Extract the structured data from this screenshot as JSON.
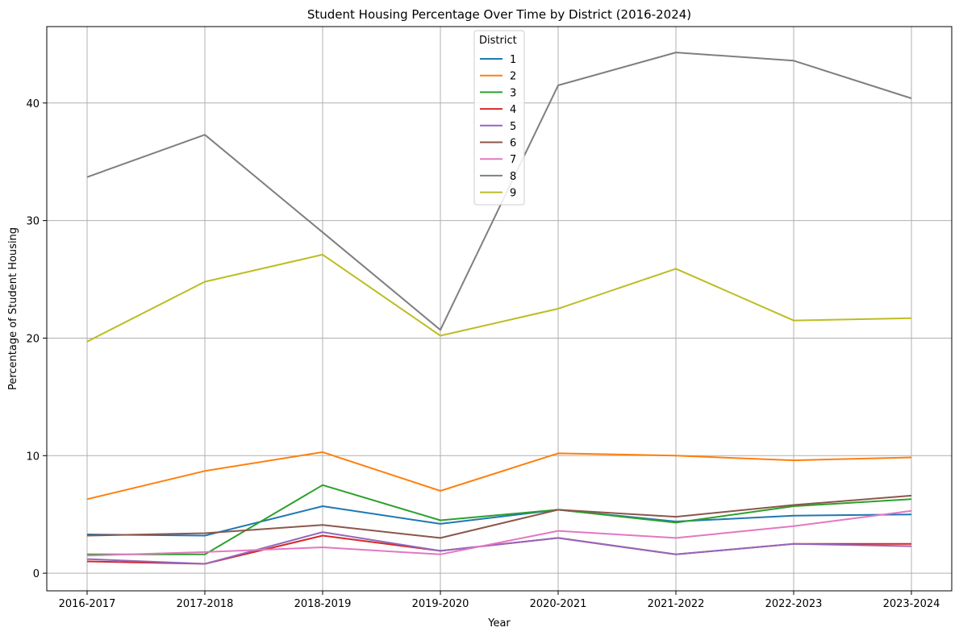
{
  "chart_data": {
    "type": "line",
    "title": "Student Housing Percentage Over Time by District (2016-2024)",
    "xlabel": "Year",
    "ylabel": "Percentage of Student Housing",
    "categories": [
      "2016-2017",
      "2017-2018",
      "2018-2019",
      "2019-2020",
      "2020-2021",
      "2021-2022",
      "2022-2023",
      "2023-2024"
    ],
    "ylim": [
      -1.5,
      46.5
    ],
    "yticks": [
      0,
      10,
      20,
      30,
      40
    ],
    "grid": true,
    "legend": {
      "title": "District",
      "placement": "upper-center"
    },
    "series": [
      {
        "name": "1",
        "color": "#1f77b4",
        "values": [
          3.3,
          3.2,
          5.7,
          4.2,
          5.4,
          4.4,
          4.9,
          5.0
        ]
      },
      {
        "name": "2",
        "color": "#ff7f0e",
        "values": [
          6.3,
          8.7,
          10.3,
          7.0,
          10.2,
          10.0,
          9.6,
          9.85
        ]
      },
      {
        "name": "3",
        "color": "#2ca02c",
        "values": [
          1.6,
          1.6,
          7.5,
          4.5,
          5.4,
          4.3,
          5.7,
          6.3
        ]
      },
      {
        "name": "4",
        "color": "#d62728",
        "values": [
          1.0,
          0.8,
          3.2,
          1.9,
          3.0,
          1.6,
          2.5,
          2.5
        ]
      },
      {
        "name": "5",
        "color": "#9467bd",
        "values": [
          1.2,
          0.8,
          3.5,
          1.9,
          3.0,
          1.6,
          2.5,
          2.3
        ]
      },
      {
        "name": "6",
        "color": "#8c564b",
        "values": [
          3.2,
          3.4,
          4.1,
          3.0,
          5.4,
          4.8,
          5.8,
          6.6
        ]
      },
      {
        "name": "7",
        "color": "#e377c2",
        "values": [
          1.5,
          1.8,
          2.2,
          1.6,
          3.6,
          3.0,
          4.0,
          5.3
        ]
      },
      {
        "name": "8",
        "color": "#7f7f7f",
        "values": [
          33.7,
          37.3,
          29.0,
          20.7,
          41.5,
          44.3,
          43.6,
          40.4
        ]
      },
      {
        "name": "9",
        "color": "#bcbd22",
        "values": [
          19.7,
          24.8,
          27.1,
          20.2,
          22.5,
          25.9,
          21.5,
          21.7
        ]
      }
    ]
  }
}
